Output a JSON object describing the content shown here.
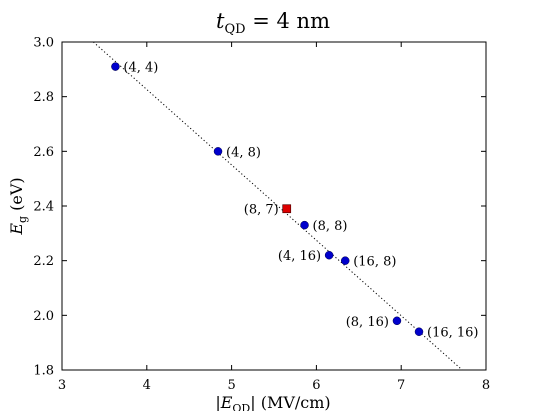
{
  "chart_data": {
    "type": "scatter",
    "title": "t_QD = 4 nm",
    "title_main": "t",
    "title_sub": "QD",
    "title_rest": " = 4 nm",
    "xlabel": "|E_QD| (MV/cm)",
    "xlabel_parts": {
      "pre": "|",
      "var": "E",
      "sub": "QD",
      "post": "| (MV/cm)"
    },
    "ylabel": "E_g (eV)",
    "ylabel_parts": {
      "var": "E",
      "sub": "g",
      "post": " (eV)"
    },
    "xlim": [
      3,
      8
    ],
    "ylim": [
      1.8,
      3.0
    ],
    "xticks": [
      3,
      4,
      5,
      6,
      7,
      8
    ],
    "yticks": [
      1.8,
      2.0,
      2.2,
      2.4,
      2.6,
      2.8,
      3.0
    ],
    "xtick_labels": [
      "3",
      "4",
      "5",
      "6",
      "7",
      "8"
    ],
    "ytick_labels": [
      "1.8",
      "2.0",
      "2.2",
      "2.4",
      "2.6",
      "2.8",
      "3.0"
    ],
    "grid": false,
    "series": [
      {
        "marker": "circle",
        "color": "#0000cc",
        "points": [
          {
            "x": 3.63,
            "y": 2.91,
            "label": "(4, 4)",
            "label_side": "right"
          },
          {
            "x": 4.84,
            "y": 2.6,
            "label": "(4, 8)",
            "label_side": "right"
          },
          {
            "x": 5.86,
            "y": 2.33,
            "label": "(8, 8)",
            "label_side": "right"
          },
          {
            "x": 6.15,
            "y": 2.22,
            "label": "(4, 16)",
            "label_side": "left"
          },
          {
            "x": 6.34,
            "y": 2.2,
            "label": "(16, 8)",
            "label_side": "right"
          },
          {
            "x": 6.95,
            "y": 1.98,
            "label": "(8, 16)",
            "label_side": "left"
          },
          {
            "x": 7.21,
            "y": 1.94,
            "label": "(16, 16)",
            "label_side": "right"
          }
        ]
      },
      {
        "marker": "square",
        "color": "#dd0000",
        "points": [
          {
            "x": 5.65,
            "y": 2.39,
            "label": "(8, 7)",
            "label_side": "left"
          }
        ]
      }
    ],
    "fit_line": {
      "style": "dotted",
      "color": "#000000",
      "x": [
        3.37,
        7.72
      ],
      "y": [
        3.0,
        1.8
      ]
    }
  }
}
